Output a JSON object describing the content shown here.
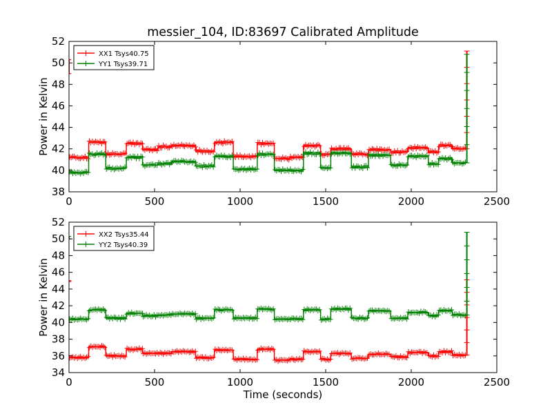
{
  "title": "messier_104, ID:83697 Calibrated Amplitude",
  "chart_data": [
    {
      "type": "line",
      "panel": "top",
      "ylabel": "Power in Kelvin",
      "xlabel": "",
      "xlim": [
        0,
        2500
      ],
      "ylim": [
        38,
        52
      ],
      "xticks": [
        0,
        500,
        1000,
        1500,
        2000,
        2500
      ],
      "yticks": [
        38,
        40,
        42,
        44,
        46,
        48,
        50,
        52
      ],
      "legend_position": "top-left",
      "grid": false,
      "series": [
        {
          "name": "XX1 Tsys40.75",
          "color": "#ff0000",
          "segments": [
            [
              0,
              115,
              41.2
            ],
            [
              115,
              215,
              42.6
            ],
            [
              215,
              335,
              41.5
            ],
            [
              335,
              430,
              42.5
            ],
            [
              430,
              520,
              41.9
            ],
            [
              520,
              600,
              42.2
            ],
            [
              600,
              740,
              42.3
            ],
            [
              740,
              850,
              41.8
            ],
            [
              850,
              960,
              42.6
            ],
            [
              960,
              1100,
              41.3
            ],
            [
              1100,
              1200,
              42.5
            ],
            [
              1200,
              1290,
              41.1
            ],
            [
              1290,
              1370,
              41.2
            ],
            [
              1370,
              1470,
              42.3
            ],
            [
              1470,
              1530,
              41.5
            ],
            [
              1530,
              1650,
              42.0
            ],
            [
              1650,
              1750,
              41.5
            ],
            [
              1750,
              1880,
              41.9
            ],
            [
              1880,
              1980,
              41.7
            ],
            [
              1980,
              2100,
              42.1
            ],
            [
              2100,
              2160,
              41.7
            ],
            [
              2160,
              2240,
              42.3
            ],
            [
              2240,
              2325,
              42.0
            ]
          ],
          "start_spike": [
            49.0,
            50.3
          ],
          "end_spike": [
            42.0,
            51.1
          ]
        },
        {
          "name": "YY1 Tsys39.71",
          "color": "#008000",
          "segments": [
            [
              0,
              115,
              39.8
            ],
            [
              115,
              215,
              41.5
            ],
            [
              215,
              335,
              40.2
            ],
            [
              335,
              430,
              41.2
            ],
            [
              430,
              520,
              40.5
            ],
            [
              520,
              600,
              40.6
            ],
            [
              600,
              740,
              40.8
            ],
            [
              740,
              850,
              40.4
            ],
            [
              850,
              960,
              41.3
            ],
            [
              960,
              1100,
              40.1
            ],
            [
              1100,
              1200,
              41.5
            ],
            [
              1200,
              1290,
              40.0
            ],
            [
              1290,
              1370,
              40.0
            ],
            [
              1370,
              1470,
              41.6
            ],
            [
              1470,
              1530,
              40.2
            ],
            [
              1530,
              1650,
              41.6
            ],
            [
              1650,
              1750,
              40.3
            ],
            [
              1750,
              1880,
              41.4
            ],
            [
              1880,
              1980,
              40.5
            ],
            [
              1980,
              2100,
              41.3
            ],
            [
              2100,
              2160,
              40.6
            ],
            [
              2160,
              2240,
              41.1
            ],
            [
              2240,
              2325,
              40.7
            ]
          ],
          "end_spike": [
            40.7,
            50.8
          ]
        }
      ]
    },
    {
      "type": "line",
      "panel": "bottom",
      "ylabel": "Power in Kelvin",
      "xlabel": "Time (seconds)",
      "xlim": [
        0,
        2500
      ],
      "ylim": [
        34,
        52
      ],
      "xticks": [
        0,
        500,
        1000,
        1500,
        2000,
        2500
      ],
      "yticks": [
        34,
        36,
        38,
        40,
        42,
        44,
        46,
        48,
        50,
        52
      ],
      "legend_position": "top-left",
      "grid": false,
      "series": [
        {
          "name": "XX2 Tsys35.44",
          "color": "#ff0000",
          "segments": [
            [
              0,
              115,
              35.8
            ],
            [
              115,
              215,
              37.1
            ],
            [
              215,
              335,
              36.0
            ],
            [
              335,
              430,
              36.8
            ],
            [
              430,
              520,
              36.3
            ],
            [
              520,
              600,
              36.3
            ],
            [
              600,
              740,
              36.5
            ],
            [
              740,
              850,
              35.8
            ],
            [
              850,
              960,
              36.7
            ],
            [
              960,
              1100,
              35.6
            ],
            [
              1100,
              1200,
              36.8
            ],
            [
              1200,
              1290,
              35.5
            ],
            [
              1290,
              1370,
              35.6
            ],
            [
              1370,
              1470,
              36.5
            ],
            [
              1470,
              1530,
              35.6
            ],
            [
              1530,
              1650,
              36.3
            ],
            [
              1650,
              1750,
              35.7
            ],
            [
              1750,
              1880,
              36.2
            ],
            [
              1880,
              1980,
              35.9
            ],
            [
              1980,
              2100,
              36.4
            ],
            [
              2100,
              2160,
              36.0
            ],
            [
              2160,
              2240,
              36.5
            ],
            [
              2240,
              2325,
              36.1
            ]
          ],
          "start_spike": [
            44.9,
            45.0
          ],
          "end_spike": [
            36.1,
            45.1
          ]
        },
        {
          "name": "YY2 Tsys40.39",
          "color": "#008000",
          "segments": [
            [
              0,
              115,
              40.4
            ],
            [
              115,
              215,
              41.5
            ],
            [
              215,
              335,
              40.5
            ],
            [
              335,
              430,
              41.1
            ],
            [
              430,
              520,
              40.8
            ],
            [
              520,
              600,
              40.9
            ],
            [
              600,
              740,
              41.0
            ],
            [
              740,
              850,
              40.5
            ],
            [
              850,
              960,
              41.5
            ],
            [
              960,
              1100,
              40.5
            ],
            [
              1100,
              1200,
              41.6
            ],
            [
              1200,
              1290,
              40.4
            ],
            [
              1290,
              1370,
              40.4
            ],
            [
              1370,
              1470,
              41.5
            ],
            [
              1470,
              1530,
              40.4
            ],
            [
              1530,
              1650,
              41.6
            ],
            [
              1650,
              1750,
              40.5
            ],
            [
              1750,
              1880,
              41.4
            ],
            [
              1880,
              1980,
              40.5
            ],
            [
              1980,
              2100,
              41.2
            ],
            [
              2100,
              2160,
              40.8
            ],
            [
              2160,
              2240,
              41.4
            ],
            [
              2240,
              2325,
              40.9
            ]
          ],
          "start_spike": [
            50.0,
            50.3
          ],
          "end_spike": [
            40.9,
            50.8
          ]
        }
      ]
    }
  ]
}
